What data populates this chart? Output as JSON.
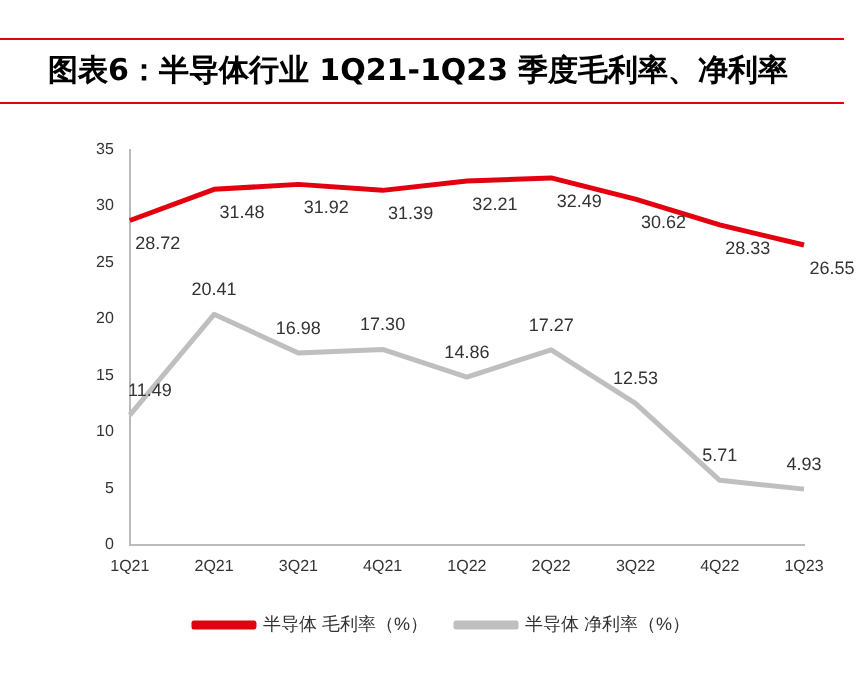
{
  "chart_data": {
    "type": "line",
    "title": "图表6：半导体行业 1Q21-1Q23 季度毛利率、净利率",
    "categories": [
      "1Q21",
      "2Q21",
      "3Q21",
      "4Q21",
      "1Q22",
      "2Q22",
      "3Q22",
      "4Q22",
      "1Q23"
    ],
    "series": [
      {
        "name": "半导体 毛利率（%）",
        "color": "#e3000f",
        "values": [
          28.72,
          31.48,
          31.92,
          31.39,
          32.21,
          32.49,
          30.62,
          28.33,
          26.55
        ]
      },
      {
        "name": "半导体 净利率（%）",
        "color": "#bfbfbf",
        "values": [
          11.49,
          20.41,
          16.98,
          17.3,
          14.86,
          17.27,
          12.53,
          5.71,
          4.93
        ],
        "value_labels": [
          "11.49",
          "20.41",
          "16.98",
          "17.30",
          "14.86",
          "17.27",
          "12.53",
          "5.71",
          "4.93"
        ]
      }
    ],
    "ylim": [
      0,
      35
    ],
    "yticks": [
      0,
      5,
      10,
      15,
      20,
      25,
      30,
      35
    ],
    "grid": false,
    "legend": "bottom",
    "marker": "none",
    "line_style": "solid",
    "data_labels": true
  }
}
